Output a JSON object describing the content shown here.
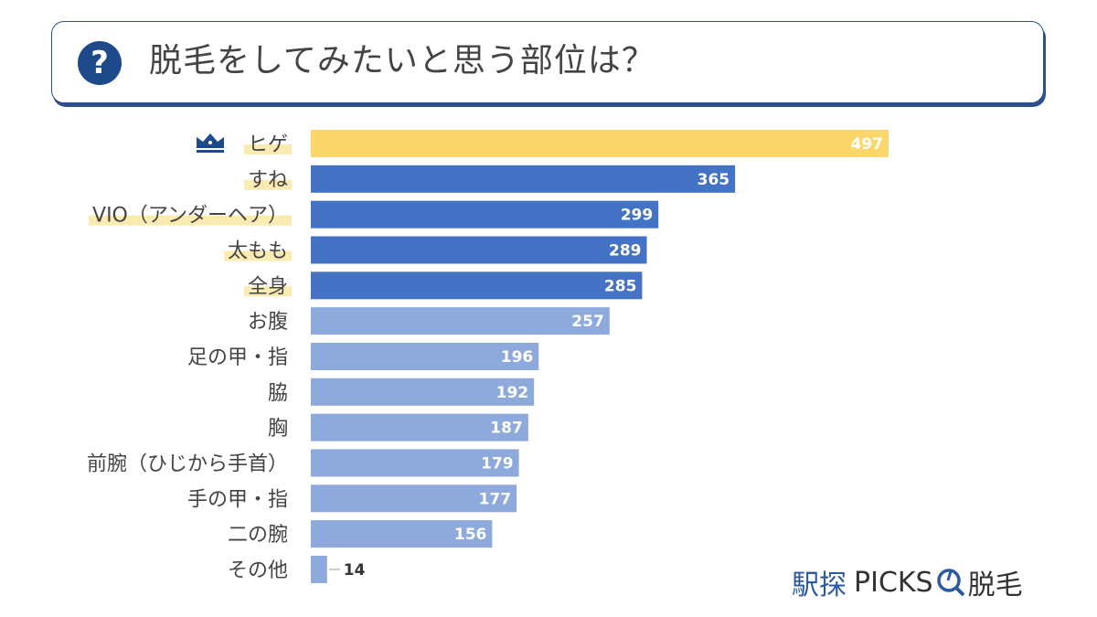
{
  "title": "脱毛をしてみたいと思う部位は？",
  "title_icon": "question-circle-icon",
  "logo": {
    "part1": "駅探",
    "part2": "PICKS",
    "part3": "脱毛"
  },
  "colors": {
    "top": "#FBD66A",
    "high": "#4472C4",
    "low": "#8EA9DB",
    "highlight": "#FCEBB0",
    "crown": "#1f4a8a"
  },
  "chart_data": {
    "type": "bar",
    "orientation": "horizontal",
    "categories": [
      "ヒゲ",
      "すね",
      "VIO（アンダーヘア）",
      "太もも",
      "全身",
      "お腹",
      "足の甲・指",
      "脇",
      "胸",
      "前腕（ひじから手首）",
      "手の甲・指",
      "二の腕",
      "その他"
    ],
    "values": [
      497,
      365,
      299,
      289,
      285,
      257,
      196,
      192,
      187,
      179,
      177,
      156,
      14
    ],
    "top_rank_icon": "crown-icon",
    "highlighted_labels": [
      0,
      1,
      2,
      3,
      4
    ],
    "grid": false
  }
}
